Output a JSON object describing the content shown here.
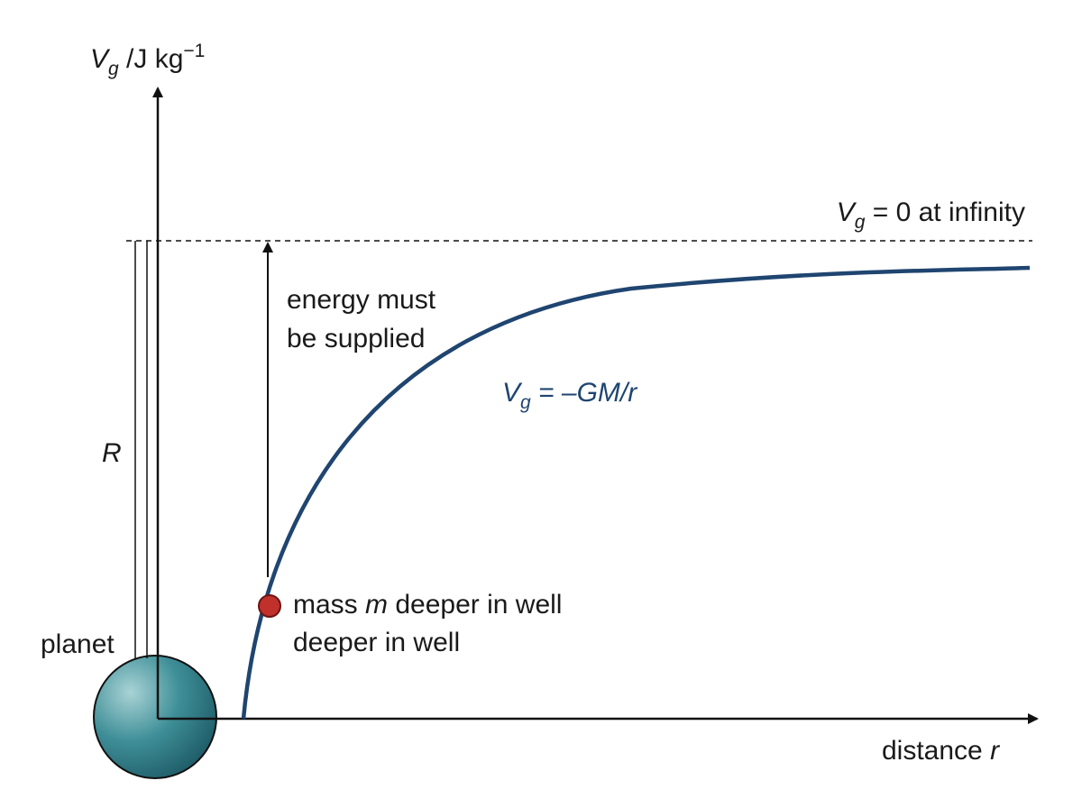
{
  "y_axis_label": {
    "symbol": "V",
    "subscript": "g",
    "unit": " /J kg",
    "superscript": "−1"
  },
  "zero_label": {
    "symbol": "V",
    "subscript": "g",
    "rest": " = 0 at infinity"
  },
  "energy_label": [
    "energy must",
    "be supplied"
  ],
  "curve_label": {
    "symbol": "V",
    "subscript": "g",
    "rest": " = –GM/r"
  },
  "radius_label": "R",
  "planet_label": "planet",
  "mass_label": {
    "before": "mass ",
    "symbol": "m",
    "after": " deeper in well",
    "line2": "deeper in well"
  },
  "x_axis_label": {
    "text": "distance ",
    "symbol": "r"
  }
}
